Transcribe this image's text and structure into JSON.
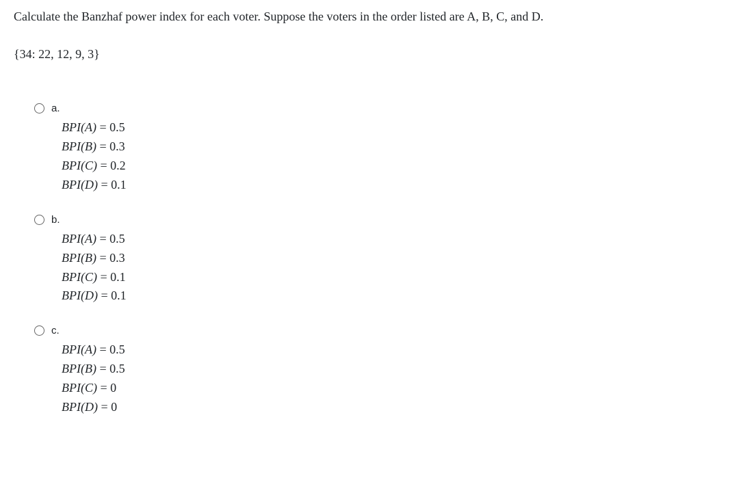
{
  "question": {
    "prompt": "Calculate the Banzhaf power index for each voter. Suppose the voters in the order listed are A, B, C, and D.",
    "weights": "{34: 22, 12, 9, 3}"
  },
  "options": [
    {
      "label": "a.",
      "lines": [
        {
          "lhs": "BPI(A)",
          "rhs": "0.5"
        },
        {
          "lhs": "BPI(B)",
          "rhs": "0.3"
        },
        {
          "lhs": "BPI(C)",
          "rhs": "0.2"
        },
        {
          "lhs": "BPI(D)",
          "rhs": "0.1"
        }
      ]
    },
    {
      "label": "b.",
      "lines": [
        {
          "lhs": "BPI(A)",
          "rhs": "0.5"
        },
        {
          "lhs": "BPI(B)",
          "rhs": "0.3"
        },
        {
          "lhs": "BPI(C)",
          "rhs": "0.1"
        },
        {
          "lhs": "BPI(D)",
          "rhs": "0.1"
        }
      ]
    },
    {
      "label": "c.",
      "lines": [
        {
          "lhs": "BPI(A)",
          "rhs": "0.5"
        },
        {
          "lhs": "BPI(B)",
          "rhs": "0.5"
        },
        {
          "lhs": "BPI(C)",
          "rhs": "0"
        },
        {
          "lhs": "BPI(D)",
          "rhs": "0"
        }
      ]
    }
  ],
  "style": {
    "text_color": "#212529",
    "background_color": "#ffffff",
    "body_fontsize": 18,
    "option_label_fontsize": 15,
    "math_font_style": "italic"
  }
}
